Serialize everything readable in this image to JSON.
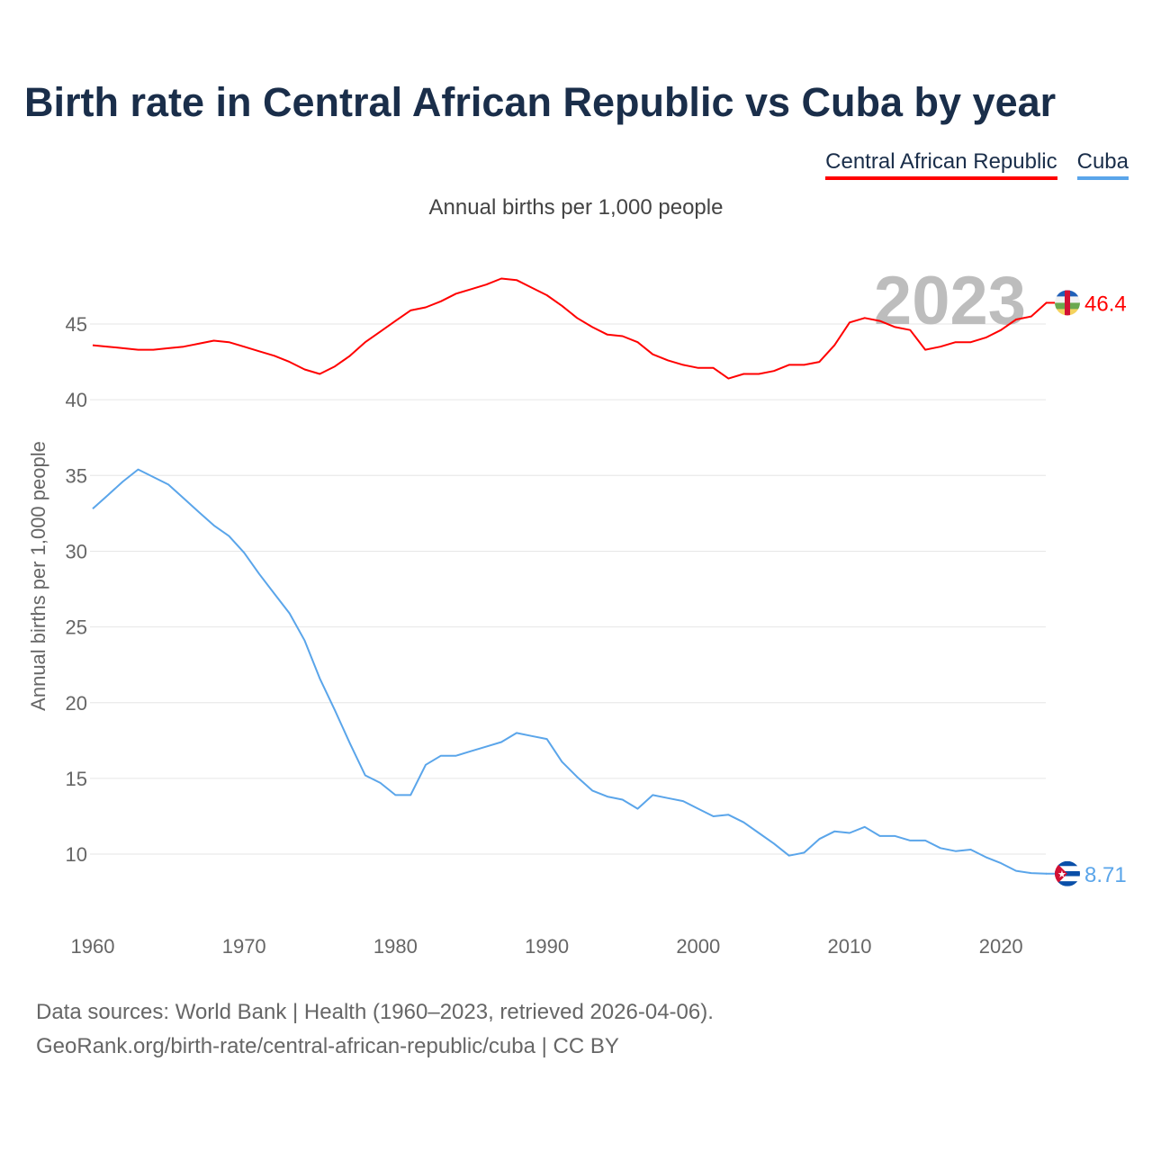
{
  "title": "Birth rate in Central African Republic vs Cuba by year",
  "source_lines": [
    "Data sources: World Bank | Health (1960–2023, retrieved 2026-04-06).",
    "GeoRank.org/birth-rate/central-african-republic/cuba | CC BY"
  ],
  "chart_data": {
    "type": "line",
    "title": "Birth rate in Central African Republic vs Cuba by year",
    "subtitle": "Annual births per 1,000 people",
    "ylabel": "Annual births per 1,000 people",
    "xlabel": "",
    "year_overlay": "2023",
    "xlim": [
      1960,
      2023
    ],
    "ylim": [
      6,
      50
    ],
    "yticks": [
      10,
      15,
      20,
      25,
      30,
      35,
      40,
      45
    ],
    "xticks": [
      1960,
      1970,
      1980,
      1990,
      2000,
      2010,
      2020
    ],
    "grid": true,
    "legend_position": "top-right",
    "x": [
      1960,
      1961,
      1962,
      1963,
      1964,
      1965,
      1966,
      1967,
      1968,
      1969,
      1970,
      1971,
      1972,
      1973,
      1974,
      1975,
      1976,
      1977,
      1978,
      1979,
      1980,
      1981,
      1982,
      1983,
      1984,
      1985,
      1986,
      1987,
      1988,
      1989,
      1990,
      1991,
      1992,
      1993,
      1994,
      1995,
      1996,
      1997,
      1998,
      1999,
      2000,
      2001,
      2002,
      2003,
      2004,
      2005,
      2006,
      2007,
      2008,
      2009,
      2010,
      2011,
      2012,
      2013,
      2014,
      2015,
      2016,
      2017,
      2018,
      2019,
      2020,
      2021,
      2022,
      2023
    ],
    "series": [
      {
        "name": "Central African Republic",
        "color": "#ff0000",
        "end_label": "46.4",
        "values": [
          43.6,
          43.5,
          43.4,
          43.3,
          43.3,
          43.4,
          43.5,
          43.7,
          43.9,
          43.8,
          43.5,
          43.2,
          42.9,
          42.5,
          42.0,
          41.7,
          42.2,
          42.9,
          43.8,
          44.5,
          45.2,
          45.9,
          46.1,
          46.5,
          47.0,
          47.3,
          47.6,
          48.0,
          47.9,
          47.4,
          46.9,
          46.2,
          45.4,
          44.8,
          44.3,
          44.2,
          43.8,
          43.0,
          42.6,
          42.3,
          42.1,
          42.1,
          41.4,
          41.7,
          41.7,
          41.9,
          42.3,
          42.3,
          42.5,
          43.6,
          45.1,
          45.4,
          45.2,
          44.8,
          44.6,
          43.3,
          43.5,
          43.8,
          43.8,
          44.1,
          44.6,
          45.3,
          45.5,
          46.4
        ]
      },
      {
        "name": "Cuba",
        "color": "#5aa5ea",
        "end_label": "8.71",
        "values": [
          32.8,
          33.7,
          34.6,
          35.4,
          34.9,
          34.4,
          33.5,
          32.6,
          31.7,
          31.0,
          29.9,
          28.5,
          27.2,
          25.9,
          24.1,
          21.6,
          19.5,
          17.3,
          15.2,
          14.7,
          13.9,
          13.9,
          15.9,
          16.5,
          16.5,
          16.8,
          17.1,
          17.4,
          18.0,
          17.8,
          17.6,
          16.1,
          15.1,
          14.2,
          13.8,
          13.6,
          13.0,
          13.9,
          13.7,
          13.5,
          13.0,
          12.5,
          12.6,
          12.1,
          11.4,
          10.7,
          9.9,
          10.1,
          11.0,
          11.5,
          11.4,
          11.8,
          11.2,
          11.2,
          10.9,
          10.9,
          10.4,
          10.2,
          10.3,
          9.8,
          9.4,
          8.9,
          8.75,
          8.71
        ]
      }
    ]
  }
}
